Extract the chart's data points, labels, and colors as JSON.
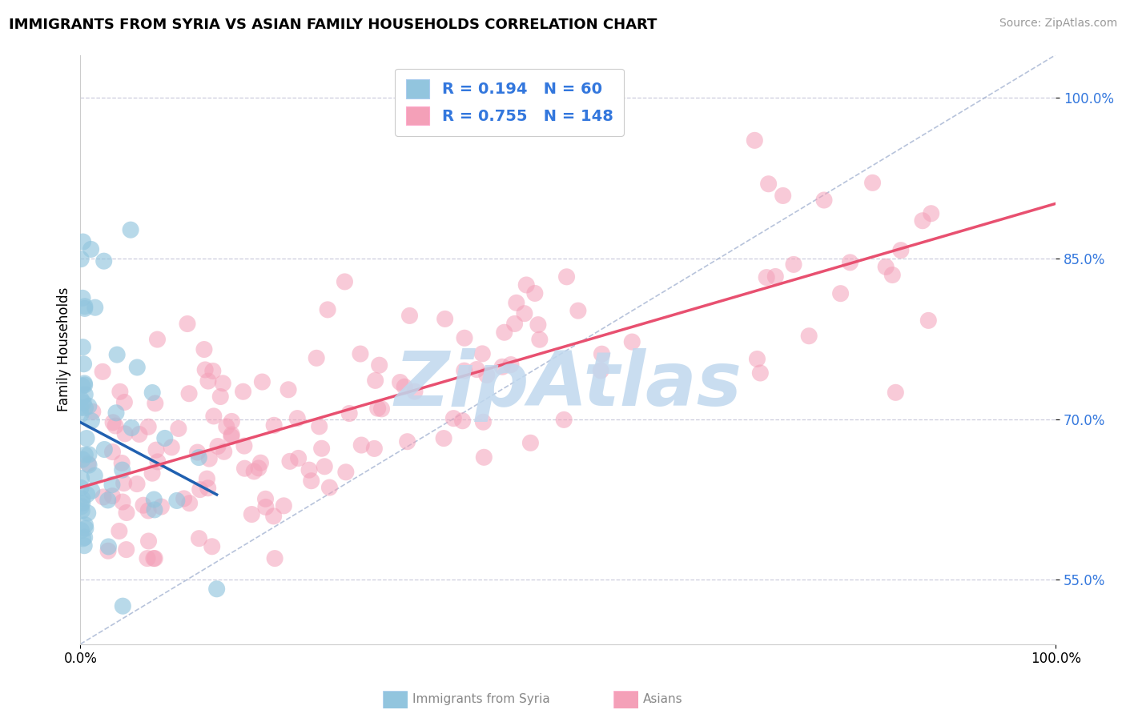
{
  "title": "IMMIGRANTS FROM SYRIA VS ASIAN FAMILY HOUSEHOLDS CORRELATION CHART",
  "source": "Source: ZipAtlas.com",
  "ylabel": "Family Households",
  "xlim": [
    0,
    100
  ],
  "ylim": [
    49,
    104
  ],
  "yticks": [
    55.0,
    70.0,
    85.0,
    100.0
  ],
  "ytick_labels": [
    "55.0%",
    "70.0%",
    "85.0%",
    "100.0%"
  ],
  "legend_r_syria": "0.194",
  "legend_n_syria": "60",
  "legend_r_asian": "0.755",
  "legend_n_asian": "148",
  "syria_color": "#92C5DE",
  "asian_color": "#F4A0B8",
  "syria_line_color": "#2060B0",
  "asian_line_color": "#E85070",
  "ref_line_color": "#99AACC",
  "watermark": "ZipAtlas",
  "watermark_color": "#C0D8EE",
  "title_fontsize": 13,
  "source_fontsize": 10,
  "legend_fontsize": 14,
  "legend_text_color": "#3377DD",
  "grid_color": "#CCCCDD",
  "axis_color": "#CCCCCC",
  "bottom_legend_color": "#888888"
}
